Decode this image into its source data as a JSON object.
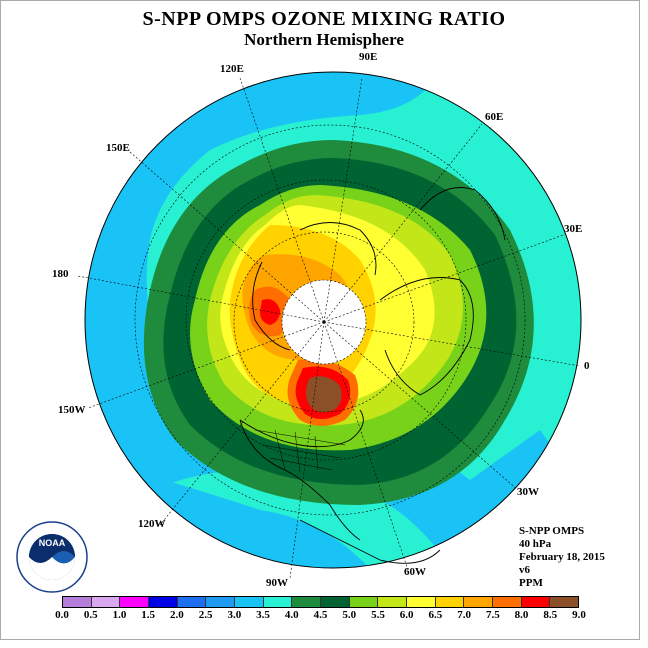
{
  "header": {
    "title": "S-NPP OMPS OZONE MIXING RATIO",
    "subtitle": "Northern Hemisphere"
  },
  "longitude_labels": [
    "90E",
    "60E",
    "30E",
    "0",
    "30W",
    "60W",
    "90W",
    "120W",
    "150W",
    "180",
    "150E",
    "120E"
  ],
  "info": {
    "instrument": "S-NPP OMPS",
    "level": "40 hPa",
    "date": "February 18, 2015",
    "version": "v6",
    "unit": "PPM"
  },
  "logo": {
    "text": "NOAA",
    "ring_text": "NATIONAL OCEANIC AND ATMOSPHERIC ADMINISTRATION · U.S. DEPARTMENT OF COMMERCE"
  },
  "colorbar": {
    "ticks": [
      "0.0",
      "0.5",
      "1.0",
      "1.5",
      "2.0",
      "2.5",
      "3.0",
      "3.5",
      "4.0",
      "4.5",
      "5.0",
      "5.5",
      "6.0",
      "6.5",
      "7.0",
      "7.5",
      "8.0",
      "8.5",
      "9.0"
    ],
    "colors": [
      "#b37dd9",
      "#d9a6f0",
      "#ff00ff",
      "#0000e6",
      "#1e6ef0",
      "#1e9bf0",
      "#19c3f5",
      "#28f0d2",
      "#1e8c3c",
      "#006432",
      "#78d219",
      "#c3e619",
      "#ffff32",
      "#ffd200",
      "#ffa500",
      "#ff6e00",
      "#ff0000",
      "#8c5028"
    ]
  },
  "map_colors": {
    "c35": "#19c3f5",
    "c40": "#28f0d2",
    "c45": "#1e8c3c",
    "c50": "#006432",
    "c55": "#78d219",
    "c60": "#c3e619",
    "c65": "#ffff32",
    "c70": "#ffd200",
    "c75": "#ffa500",
    "c80": "#ff6e00",
    "c85": "#ff0000",
    "c90": "#8c5028",
    "nodata": "#ffffff"
  }
}
